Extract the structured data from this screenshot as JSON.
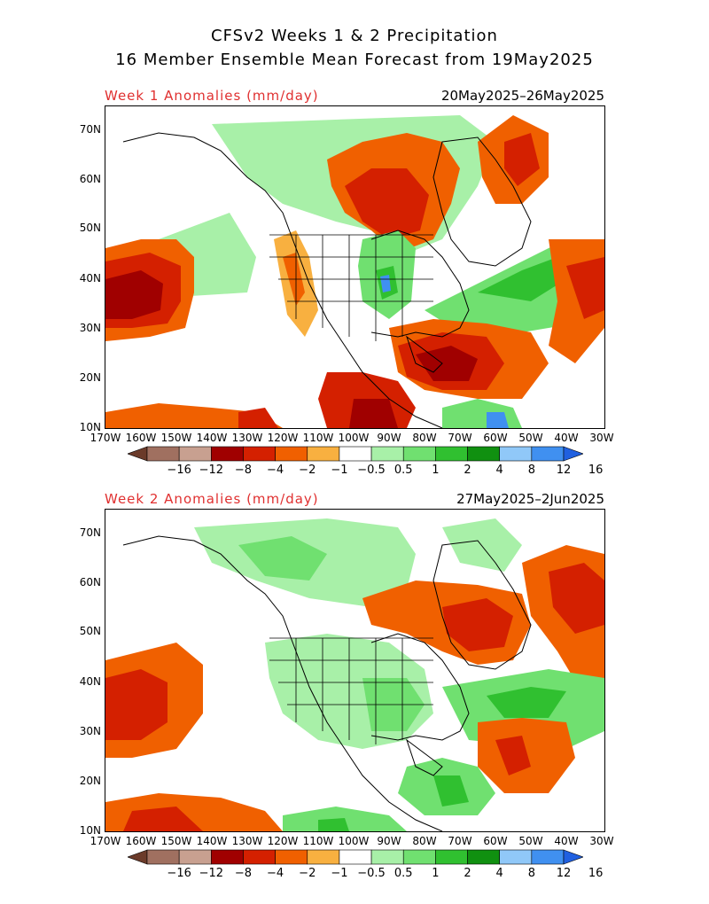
{
  "header": {
    "line1": "CFSv2 Weeks 1 & 2 Precipitation",
    "line2": "16 Member Ensemble Mean Forecast from 19May2025"
  },
  "panels": [
    {
      "label": "Week 1 Anomalies (mm/day)",
      "dates": "20May2025–26May2025"
    },
    {
      "label": "Week 2 Anomalies (mm/day)",
      "dates": "27May2025–2Jun2025"
    }
  ],
  "lat_labels": [
    "70N",
    "60N",
    "50N",
    "40N",
    "30N",
    "20N",
    "10N"
  ],
  "lon_labels": [
    "170W",
    "160W",
    "150W",
    "140W",
    "130W",
    "120W",
    "110W",
    "100W",
    "90W",
    "80W",
    "70W",
    "60W",
    "50W",
    "40W",
    "30W"
  ],
  "colorbar": {
    "labels": [
      "−16",
      "−12",
      "−8",
      "−4",
      "−2",
      "−1",
      "−0.5",
      "0.5",
      "1",
      "2",
      "4",
      "8",
      "12",
      "16"
    ],
    "colors": [
      "#6b3b2a",
      "#a07060",
      "#c8a090",
      "#a00000",
      "#d42000",
      "#f06000",
      "#f8b040",
      "#ffffff",
      "#a8f0a8",
      "#70e070",
      "#30c030",
      "#109010",
      "#90c8f8",
      "#4090f0",
      "#2060e0"
    ]
  }
}
